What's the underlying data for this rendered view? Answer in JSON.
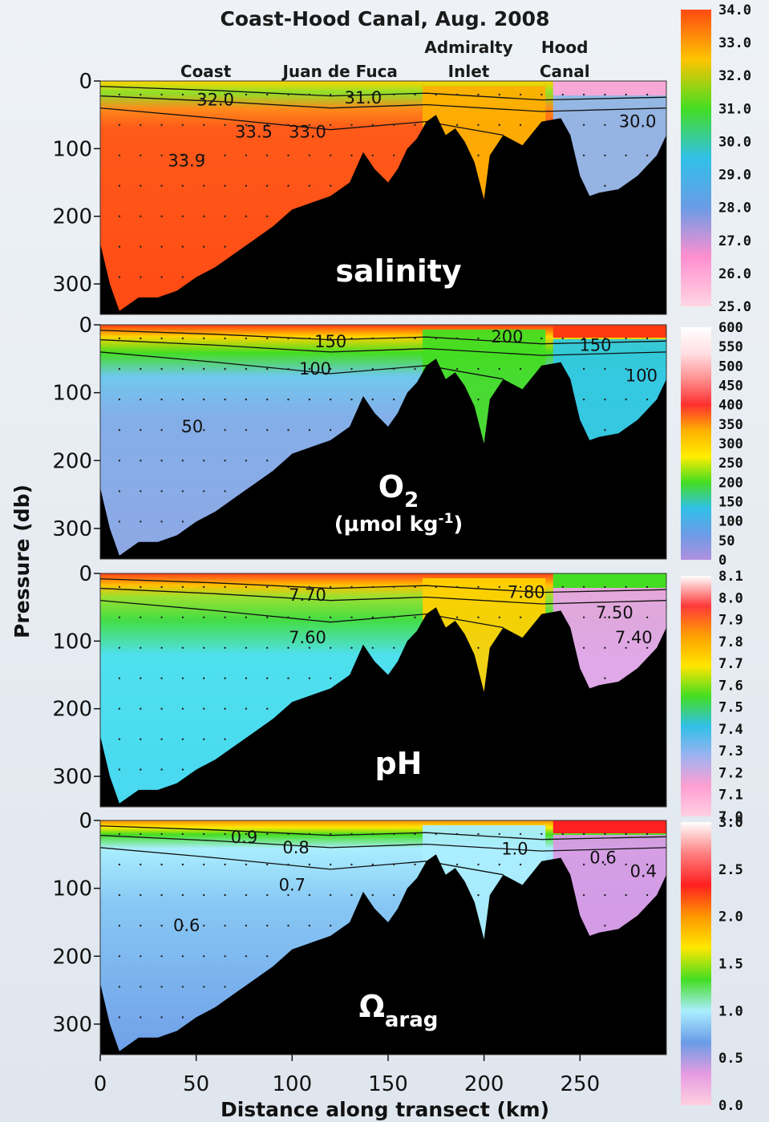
{
  "chart_data": {
    "type": "heatmap",
    "title": "Coast-Hood Canal, Aug. 2008",
    "xlabel": "Distance along transect (km)",
    "ylabel": "Pressure (db)",
    "xlim": [
      0,
      295
    ],
    "x_ticks": [
      0,
      50,
      100,
      150,
      200,
      250
    ],
    "y_ticks": [
      0,
      100,
      200,
      300
    ],
    "site_labels": [
      {
        "lines": [
          "Coast"
        ],
        "x_km": 55
      },
      {
        "lines": [
          "Juan de Fuca"
        ],
        "x_km": 125
      },
      {
        "lines": [
          "Admiralty",
          "Inlet"
        ],
        "x_km": 192
      },
      {
        "lines": [
          "Hood",
          "Canal"
        ],
        "x_km": 242
      }
    ],
    "bathymetry_depth_db": [
      [
        0,
        240
      ],
      [
        5,
        300
      ],
      [
        10,
        340
      ],
      [
        20,
        320
      ],
      [
        30,
        320
      ],
      [
        40,
        310
      ],
      [
        50,
        290
      ],
      [
        60,
        275
      ],
      [
        70,
        255
      ],
      [
        80,
        235
      ],
      [
        90,
        215
      ],
      [
        100,
        190
      ],
      [
        110,
        180
      ],
      [
        120,
        170
      ],
      [
        130,
        150
      ],
      [
        137,
        105
      ],
      [
        143,
        130
      ],
      [
        150,
        150
      ],
      [
        155,
        130
      ],
      [
        160,
        100
      ],
      [
        165,
        85
      ],
      [
        170,
        60
      ],
      [
        175,
        50
      ],
      [
        180,
        80
      ],
      [
        185,
        70
      ],
      [
        190,
        90
      ],
      [
        195,
        120
      ],
      [
        200,
        175
      ],
      [
        203,
        110
      ],
      [
        210,
        80
      ],
      [
        220,
        95
      ],
      [
        230,
        60
      ],
      [
        240,
        55
      ],
      [
        245,
        80
      ],
      [
        250,
        140
      ],
      [
        255,
        170
      ],
      [
        260,
        165
      ],
      [
        270,
        160
      ],
      [
        280,
        140
      ],
      [
        290,
        110
      ],
      [
        295,
        80
      ]
    ],
    "panels": [
      {
        "variable": "salinity",
        "label": "salinity",
        "label_sub": "",
        "colorbar_ticks": [
          "34.0",
          "33.0",
          "32.0",
          "31.0",
          "30.0",
          "29.0",
          "28.0",
          "27.0",
          "26.0",
          "25.0"
        ],
        "colorbar_colors": [
          "#ff4a12",
          "#ffc400",
          "#44dd22",
          "#31c0e8",
          "#6a9ce6",
          "#ff8fd0",
          "#ffd6e2"
        ],
        "contours": [
          {
            "label": "32.0",
            "x_km": 60,
            "depth": 28
          },
          {
            "label": "31.0",
            "x_km": 137,
            "depth": 25
          },
          {
            "label": "33.5",
            "x_km": 80,
            "depth": 75
          },
          {
            "label": "33.0",
            "x_km": 108,
            "depth": 75
          },
          {
            "label": "33.9",
            "x_km": 45,
            "depth": 118
          },
          {
            "label": "30.0",
            "x_km": 280,
            "depth": 60
          }
        ]
      },
      {
        "variable": "O2",
        "label": "O",
        "label_sub": "2",
        "unit": "(μmol kg-1)",
        "unit_main": "(μmol kg",
        "unit_sup": "-1",
        "unit_close": ")",
        "colorbar_ticks": [
          "600",
          "550",
          "500",
          "450",
          "400",
          "350",
          "300",
          "250",
          "200",
          "150",
          "100",
          "50",
          "0"
        ],
        "colorbar_colors": [
          "#ffffff",
          "#ffe0e4",
          "#ff9090",
          "#ff3030",
          "#ffb000",
          "#ffee00",
          "#44dd22",
          "#31c0e8",
          "#6a9ce6",
          "#b090e0"
        ],
        "contours": [
          {
            "label": "150",
            "x_km": 120,
            "depth": 25
          },
          {
            "label": "200",
            "x_km": 212,
            "depth": 18
          },
          {
            "label": "150",
            "x_km": 258,
            "depth": 30
          },
          {
            "label": "100",
            "x_km": 112,
            "depth": 65
          },
          {
            "label": "100",
            "x_km": 282,
            "depth": 75
          },
          {
            "label": "50",
            "x_km": 48,
            "depth": 150
          }
        ]
      },
      {
        "variable": "pH",
        "label": "pH",
        "label_sub": "",
        "colorbar_ticks": [
          "8.1",
          "8.0",
          "7.9",
          "7.8",
          "7.7",
          "7.6",
          "7.5",
          "7.4",
          "7.3",
          "7.2",
          "7.1",
          "7.0"
        ],
        "colorbar_colors": [
          "#ffffff",
          "#ff3a3a",
          "#ffa000",
          "#ffe600",
          "#44dd22",
          "#31c0e8",
          "#9fb2f0",
          "#ff9fd2",
          "#ffd0e0"
        ],
        "contours": [
          {
            "label": "7.70",
            "x_km": 108,
            "depth": 32
          },
          {
            "label": "7.80",
            "x_km": 222,
            "depth": 28
          },
          {
            "label": "7.60",
            "x_km": 108,
            "depth": 95
          },
          {
            "label": "7.50",
            "x_km": 268,
            "depth": 58
          },
          {
            "label": "7.40",
            "x_km": 278,
            "depth": 95
          }
        ]
      },
      {
        "variable": "Omega_arag",
        "label": "Ω",
        "label_sub": "arag",
        "colorbar_ticks": [
          "3.0",
          "2.5",
          "2.0",
          "1.5",
          "1.0",
          "0.5",
          "0.0"
        ],
        "colorbar_colors": [
          "#ffffff",
          "#ff8080",
          "#ff2020",
          "#ff9800",
          "#ffe800",
          "#44dd22",
          "#aaeeff",
          "#6a9ce6",
          "#e59be0",
          "#ffd0e0"
        ],
        "contours": [
          {
            "label": "0.9",
            "x_km": 75,
            "depth": 25
          },
          {
            "label": "0.8",
            "x_km": 102,
            "depth": 40
          },
          {
            "label": "1.0",
            "x_km": 216,
            "depth": 42
          },
          {
            "label": "0.6",
            "x_km": 262,
            "depth": 55
          },
          {
            "label": "0.4",
            "x_km": 283,
            "depth": 75
          },
          {
            "label": "0.7",
            "x_km": 100,
            "depth": 95
          },
          {
            "label": "0.6",
            "x_km": 45,
            "depth": 155
          }
        ]
      }
    ]
  }
}
